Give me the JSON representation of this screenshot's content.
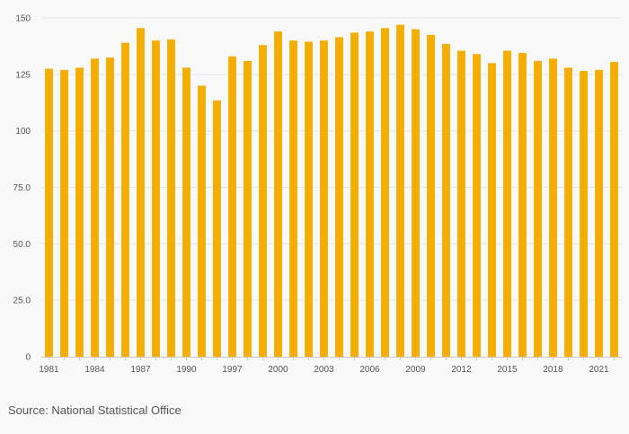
{
  "chart_data": {
    "type": "bar",
    "title": "",
    "xlabel": "",
    "ylabel": "",
    "ylim": [
      0,
      150
    ],
    "yticks": [
      "0",
      "25.0",
      "50.0",
      "75.0",
      "100",
      "125",
      "150"
    ],
    "xtick_labels": [
      "1981",
      "1984",
      "1987",
      "1990",
      "1997",
      "2000",
      "2003",
      "2006",
      "2009",
      "2012",
      "2015",
      "2018",
      "2021"
    ],
    "grid": true,
    "bar_color": "#f5ad00",
    "categories": [
      "1981",
      "1982",
      "1983",
      "1984",
      "1985",
      "1986",
      "1987",
      "1988",
      "1989",
      "1990",
      "1991",
      "1992",
      "1997",
      "1998",
      "1999",
      "2000",
      "2001",
      "2002",
      "2003",
      "2004",
      "2005",
      "2006",
      "2007",
      "2008",
      "2009",
      "2010",
      "2011",
      "2012",
      "2013",
      "2014",
      "2015",
      "2016",
      "2017",
      "2018",
      "2019",
      "2020",
      "2021",
      "2022"
    ],
    "values": [
      127.5,
      127.0,
      128.0,
      132.0,
      132.5,
      139.0,
      145.5,
      140.0,
      140.5,
      128.0,
      120.0,
      113.5,
      133.0,
      131.0,
      138.0,
      144.0,
      140.0,
      139.5,
      140.0,
      141.5,
      143.5,
      144.0,
      145.5,
      147.0,
      145.0,
      142.5,
      138.5,
      135.5,
      134.0,
      130.0,
      135.5,
      134.5,
      131.0,
      132.0,
      128.0,
      126.5,
      127.0,
      130.5
    ]
  },
  "source": "Source: National Statistical Office"
}
